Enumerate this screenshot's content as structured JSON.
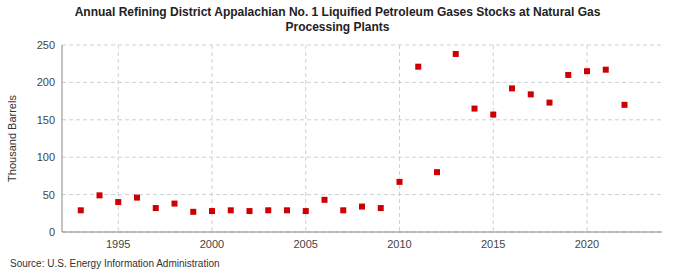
{
  "chart_data": {
    "type": "scatter",
    "title": "Annual Refining District Appalachian No. 1 Liquified Petroleum Gases Stocks at Natural Gas\nProcessing Plants",
    "y_label": "Thousand Barrels",
    "annotations": [
      "Source: U.S. Energy Information Administration"
    ],
    "x": [
      1993,
      1994,
      1995,
      1996,
      1997,
      1998,
      1999,
      2000,
      2001,
      2002,
      2003,
      2004,
      2005,
      2006,
      2007,
      2008,
      2009,
      2010,
      2011,
      2012,
      2013,
      2014,
      2015,
      2016,
      2017,
      2018,
      2019,
      2020,
      2021,
      2022
    ],
    "values": [
      29,
      49,
      40,
      46,
      32,
      38,
      27,
      28,
      29,
      28,
      29,
      29,
      28,
      43,
      29,
      34,
      32,
      67,
      221,
      80,
      238,
      165,
      157,
      192,
      184,
      173,
      210,
      215,
      217,
      170
    ],
    "color": "#cc0000",
    "marker": "square",
    "xlim": [
      1992,
      2024
    ],
    "ylim": [
      0,
      250
    ],
    "xticks": [
      1995,
      2000,
      2005,
      2010,
      2015,
      2020
    ],
    "yticks": [
      0,
      50,
      100,
      150,
      200,
      250
    ],
    "grid": true
  }
}
